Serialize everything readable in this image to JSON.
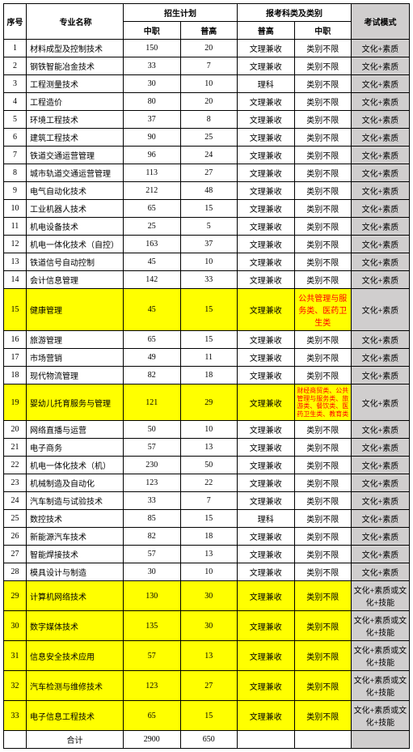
{
  "header": {
    "idx": "序号",
    "name": "专业名称",
    "plan": "招生计划",
    "reportCat": "报考科类及类别",
    "examMode": "考试模式",
    "zhongzhi": "中职",
    "pugao": "普高"
  },
  "colors": {
    "highlight_bg": "#ffff00",
    "red_text": "#ff0000",
    "gray_col": "#d0cece",
    "border": "#000000",
    "background": "#ffffff"
  },
  "rows": [
    {
      "idx": "1",
      "name": "材料成型及控制技术",
      "a": "150",
      "b": "20",
      "c": "文理兼收",
      "d": "类别不限",
      "e": "文化+素质"
    },
    {
      "idx": "2",
      "name": "钢铁智能冶金技术",
      "a": "33",
      "b": "7",
      "c": "文理兼收",
      "d": "类别不限",
      "e": "文化+素质"
    },
    {
      "idx": "3",
      "name": "工程测量技术",
      "a": "30",
      "b": "10",
      "c": "理科",
      "d": "类别不限",
      "e": "文化+素质"
    },
    {
      "idx": "4",
      "name": "工程造价",
      "a": "80",
      "b": "20",
      "c": "文理兼收",
      "d": "类别不限",
      "e": "文化+素质"
    },
    {
      "idx": "5",
      "name": "环境工程技术",
      "a": "37",
      "b": "8",
      "c": "文理兼收",
      "d": "类别不限",
      "e": "文化+素质"
    },
    {
      "idx": "6",
      "name": "建筑工程技术",
      "a": "90",
      "b": "25",
      "c": "文理兼收",
      "d": "类别不限",
      "e": "文化+素质"
    },
    {
      "idx": "7",
      "name": "铁道交通运营管理",
      "a": "96",
      "b": "24",
      "c": "文理兼收",
      "d": "类别不限",
      "e": "文化+素质"
    },
    {
      "idx": "8",
      "name": "城市轨道交通运营管理",
      "a": "113",
      "b": "27",
      "c": "文理兼收",
      "d": "类别不限",
      "e": "文化+素质"
    },
    {
      "idx": "9",
      "name": "电气自动化技术",
      "a": "212",
      "b": "48",
      "c": "文理兼收",
      "d": "类别不限",
      "e": "文化+素质"
    },
    {
      "idx": "10",
      "name": "工业机器人技术",
      "a": "65",
      "b": "15",
      "c": "文理兼收",
      "d": "类别不限",
      "e": "文化+素质"
    },
    {
      "idx": "11",
      "name": "机电设备技术",
      "a": "25",
      "b": "5",
      "c": "文理兼收",
      "d": "类别不限",
      "e": "文化+素质"
    },
    {
      "idx": "12",
      "name": "机电一体化技术（自控）",
      "a": "163",
      "b": "37",
      "c": "文理兼收",
      "d": "类别不限",
      "e": "文化+素质"
    },
    {
      "idx": "13",
      "name": "铁道信号自动控制",
      "a": "45",
      "b": "10",
      "c": "文理兼收",
      "d": "类别不限",
      "e": "文化+素质"
    },
    {
      "idx": "14",
      "name": "会计信息管理",
      "a": "142",
      "b": "33",
      "c": "文理兼收",
      "d": "类别不限",
      "e": "文化+素质"
    },
    {
      "idx": "15",
      "name": "健康管理",
      "a": "45",
      "b": "15",
      "c": "文理兼收",
      "d": "公共管理与服务类、医药卫生类",
      "e": "文化+素质",
      "hl": true,
      "dRed": true
    },
    {
      "idx": "16",
      "name": "旅游管理",
      "a": "65",
      "b": "15",
      "c": "文理兼收",
      "d": "类别不限",
      "e": "文化+素质"
    },
    {
      "idx": "17",
      "name": "市场营销",
      "a": "49",
      "b": "11",
      "c": "文理兼收",
      "d": "类别不限",
      "e": "文化+素质"
    },
    {
      "idx": "18",
      "name": "现代物流管理",
      "a": "82",
      "b": "18",
      "c": "文理兼收",
      "d": "类别不限",
      "e": "文化+素质"
    },
    {
      "idx": "19",
      "name": "婴幼儿托育服务与管理",
      "a": "121",
      "b": "29",
      "c": "文理兼收",
      "d": "财经商贸类、公共管理与服务类、旅游类、餐饮类、医药卫生类、教育类",
      "e": "文化+素质",
      "hl": true,
      "dRed": true,
      "dSmall": true
    },
    {
      "idx": "20",
      "name": "网络直播与运营",
      "a": "50",
      "b": "10",
      "c": "文理兼收",
      "d": "类别不限",
      "e": "文化+素质"
    },
    {
      "idx": "21",
      "name": "电子商务",
      "a": "57",
      "b": "13",
      "c": "文理兼收",
      "d": "类别不限",
      "e": "文化+素质"
    },
    {
      "idx": "22",
      "name": "机电一体化技术（机）",
      "a": "230",
      "b": "50",
      "c": "文理兼收",
      "d": "类别不限",
      "e": "文化+素质"
    },
    {
      "idx": "23",
      "name": "机械制造及自动化",
      "a": "123",
      "b": "22",
      "c": "文理兼收",
      "d": "类别不限",
      "e": "文化+素质"
    },
    {
      "idx": "24",
      "name": "汽车制造与试验技术",
      "a": "33",
      "b": "7",
      "c": "文理兼收",
      "d": "类别不限",
      "e": "文化+素质"
    },
    {
      "idx": "25",
      "name": "数控技术",
      "a": "85",
      "b": "15",
      "c": "理科",
      "d": "类别不限",
      "e": "文化+素质"
    },
    {
      "idx": "26",
      "name": "新能源汽车技术",
      "a": "82",
      "b": "18",
      "c": "文理兼收",
      "d": "类别不限",
      "e": "文化+素质"
    },
    {
      "idx": "27",
      "name": "智能焊接技术",
      "a": "57",
      "b": "13",
      "c": "文理兼收",
      "d": "类别不限",
      "e": "文化+素质"
    },
    {
      "idx": "28",
      "name": "模具设计与制造",
      "a": "30",
      "b": "10",
      "c": "文理兼收",
      "d": "类别不限",
      "e": "文化+素质"
    },
    {
      "idx": "29",
      "name": "计算机网络技术",
      "a": "130",
      "b": "30",
      "c": "文理兼收",
      "d": "类别不限",
      "e": "文化+素质或文化+技能",
      "hl": true
    },
    {
      "idx": "30",
      "name": "数字媒体技术",
      "a": "135",
      "b": "30",
      "c": "文理兼收",
      "d": "类别不限",
      "e": "文化+素质或文化+技能",
      "hl": true
    },
    {
      "idx": "31",
      "name": "信息安全技术应用",
      "a": "57",
      "b": "13",
      "c": "文理兼收",
      "d": "类别不限",
      "e": "文化+素质或文化+技能",
      "hl": true
    },
    {
      "idx": "32",
      "name": "汽车检测与维修技术",
      "a": "123",
      "b": "27",
      "c": "文理兼收",
      "d": "类别不限",
      "e": "文化+素质或文化+技能",
      "hl": true
    },
    {
      "idx": "33",
      "name": "电子信息工程技术",
      "a": "65",
      "b": "15",
      "c": "文理兼收",
      "d": "类别不限",
      "e": "文化+素质或文化+技能",
      "hl": true
    }
  ],
  "total": {
    "label": "合计",
    "a": "2900",
    "b": "650"
  }
}
